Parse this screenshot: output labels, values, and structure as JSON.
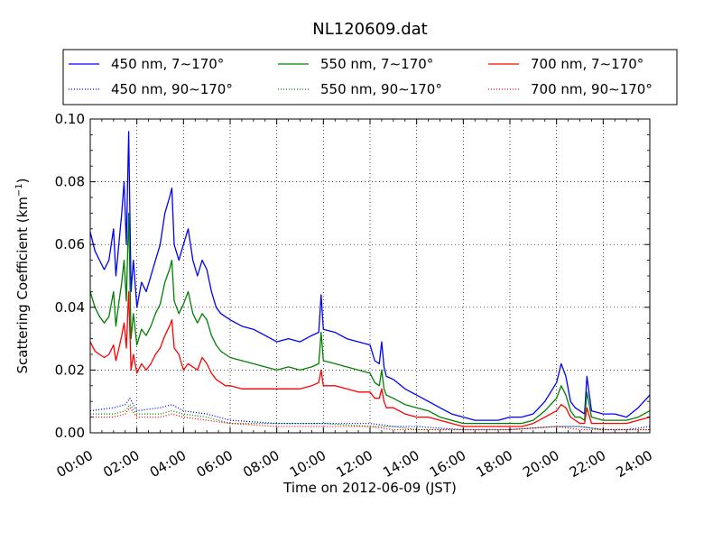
{
  "chart_data": {
    "type": "line",
    "title": "NL120609.dat",
    "xlabel": "Time on 2012-06-09 (JST)",
    "ylabel": "Scattering Coefficient (km",
    "ylabel_sup": "−1",
    "ylabel_close": ")",
    "xlim": [
      0,
      24
    ],
    "ylim": [
      0,
      0.1
    ],
    "grid": true,
    "legend_position": "top",
    "x_ticks": [
      0,
      2,
      4,
      6,
      8,
      10,
      12,
      14,
      16,
      18,
      20,
      22,
      24
    ],
    "x_tick_labels": [
      "00:00",
      "02:00",
      "04:00",
      "06:00",
      "08:00",
      "10:00",
      "12:00",
      "14:00",
      "16:00",
      "18:00",
      "20:00",
      "22:00",
      "24:00"
    ],
    "y_ticks": [
      0,
      0.02,
      0.04,
      0.06,
      0.08,
      0.1
    ],
    "y_tick_labels": [
      "0.00",
      "0.02",
      "0.04",
      "0.06",
      "0.08",
      "0.10"
    ],
    "series": [
      {
        "name": "450 nm, 7∼170°",
        "color": "#0000ff",
        "style": "solid",
        "x": [
          0,
          0.2,
          0.4,
          0.6,
          0.8,
          1.0,
          1.1,
          1.2,
          1.35,
          1.45,
          1.55,
          1.65,
          1.75,
          1.85,
          2.0,
          2.2,
          2.4,
          2.6,
          2.8,
          3.0,
          3.2,
          3.4,
          3.5,
          3.6,
          3.8,
          4.0,
          4.2,
          4.4,
          4.6,
          4.8,
          5.0,
          5.2,
          5.4,
          5.6,
          5.8,
          6.0,
          6.5,
          7.0,
          7.5,
          8.0,
          8.5,
          9.0,
          9.5,
          9.8,
          9.9,
          10.0,
          10.5,
          11.0,
          11.5,
          12.0,
          12.2,
          12.4,
          12.5,
          12.6,
          12.7,
          13.0,
          13.5,
          14.0,
          14.5,
          15.0,
          15.5,
          16.0,
          16.5,
          17.0,
          17.5,
          18.0,
          18.5,
          19.0,
          19.5,
          20.0,
          20.2,
          20.4,
          20.6,
          20.8,
          21.0,
          21.2,
          21.3,
          21.5,
          22.0,
          22.5,
          23.0,
          23.5,
          24.0
        ],
        "y": [
          0.064,
          0.058,
          0.055,
          0.052,
          0.055,
          0.065,
          0.05,
          0.058,
          0.07,
          0.08,
          0.06,
          0.096,
          0.045,
          0.055,
          0.04,
          0.048,
          0.045,
          0.05,
          0.055,
          0.06,
          0.07,
          0.075,
          0.078,
          0.06,
          0.055,
          0.06,
          0.065,
          0.055,
          0.05,
          0.055,
          0.052,
          0.045,
          0.04,
          0.038,
          0.037,
          0.036,
          0.034,
          0.033,
          0.031,
          0.029,
          0.03,
          0.029,
          0.031,
          0.032,
          0.044,
          0.033,
          0.032,
          0.03,
          0.029,
          0.028,
          0.023,
          0.022,
          0.029,
          0.021,
          0.018,
          0.017,
          0.014,
          0.012,
          0.01,
          0.008,
          0.006,
          0.005,
          0.004,
          0.004,
          0.004,
          0.005,
          0.005,
          0.006,
          0.01,
          0.016,
          0.022,
          0.018,
          0.01,
          0.008,
          0.007,
          0.006,
          0.018,
          0.007,
          0.006,
          0.006,
          0.005,
          0.008,
          0.012
        ]
      },
      {
        "name": "550 nm, 7∼170°",
        "color": "#008000",
        "style": "solid",
        "x": [
          0,
          0.2,
          0.4,
          0.6,
          0.8,
          1.0,
          1.1,
          1.2,
          1.35,
          1.45,
          1.55,
          1.65,
          1.75,
          1.85,
          2.0,
          2.2,
          2.4,
          2.6,
          2.8,
          3.0,
          3.2,
          3.4,
          3.5,
          3.6,
          3.8,
          4.0,
          4.2,
          4.4,
          4.6,
          4.8,
          5.0,
          5.2,
          5.4,
          5.6,
          5.8,
          6.0,
          6.5,
          7.0,
          7.5,
          8.0,
          8.5,
          9.0,
          9.5,
          9.8,
          9.9,
          10.0,
          10.5,
          11.0,
          11.5,
          12.0,
          12.2,
          12.4,
          12.5,
          12.6,
          12.7,
          13.0,
          13.5,
          14.0,
          14.5,
          15.0,
          15.5,
          16.0,
          16.5,
          17.0,
          17.5,
          18.0,
          18.5,
          19.0,
          19.5,
          20.0,
          20.2,
          20.4,
          20.6,
          20.8,
          21.0,
          21.2,
          21.3,
          21.5,
          22.0,
          22.5,
          23.0,
          23.5,
          24.0
        ],
        "y": [
          0.045,
          0.04,
          0.037,
          0.035,
          0.037,
          0.045,
          0.034,
          0.04,
          0.048,
          0.055,
          0.042,
          0.07,
          0.03,
          0.038,
          0.028,
          0.033,
          0.031,
          0.034,
          0.038,
          0.041,
          0.048,
          0.052,
          0.055,
          0.042,
          0.038,
          0.041,
          0.045,
          0.038,
          0.035,
          0.038,
          0.036,
          0.031,
          0.028,
          0.026,
          0.025,
          0.024,
          0.023,
          0.022,
          0.021,
          0.02,
          0.021,
          0.02,
          0.021,
          0.022,
          0.032,
          0.023,
          0.022,
          0.021,
          0.02,
          0.019,
          0.016,
          0.015,
          0.02,
          0.014,
          0.012,
          0.011,
          0.009,
          0.008,
          0.007,
          0.005,
          0.004,
          0.003,
          0.003,
          0.003,
          0.003,
          0.003,
          0.003,
          0.004,
          0.007,
          0.011,
          0.015,
          0.012,
          0.007,
          0.005,
          0.005,
          0.004,
          0.013,
          0.005,
          0.004,
          0.004,
          0.004,
          0.005,
          0.007
        ]
      },
      {
        "name": "700 nm, 7∼170°",
        "color": "#ff0000",
        "style": "solid",
        "x": [
          0,
          0.2,
          0.4,
          0.6,
          0.8,
          1.0,
          1.1,
          1.2,
          1.35,
          1.45,
          1.55,
          1.65,
          1.75,
          1.85,
          2.0,
          2.2,
          2.4,
          2.6,
          2.8,
          3.0,
          3.2,
          3.4,
          3.5,
          3.6,
          3.8,
          4.0,
          4.2,
          4.4,
          4.6,
          4.8,
          5.0,
          5.2,
          5.4,
          5.6,
          5.8,
          6.0,
          6.5,
          7.0,
          7.5,
          8.0,
          8.5,
          9.0,
          9.5,
          9.8,
          9.9,
          10.0,
          10.5,
          11.0,
          11.5,
          12.0,
          12.2,
          12.4,
          12.5,
          12.6,
          12.7,
          13.0,
          13.5,
          14.0,
          14.5,
          15.0,
          15.5,
          16.0,
          16.5,
          17.0,
          17.5,
          18.0,
          18.5,
          19.0,
          19.5,
          20.0,
          20.2,
          20.4,
          20.6,
          20.8,
          21.0,
          21.2,
          21.3,
          21.5,
          22.0,
          22.5,
          23.0,
          23.5,
          24.0
        ],
        "y": [
          0.029,
          0.026,
          0.025,
          0.024,
          0.025,
          0.028,
          0.023,
          0.026,
          0.031,
          0.035,
          0.027,
          0.045,
          0.02,
          0.025,
          0.019,
          0.022,
          0.02,
          0.022,
          0.025,
          0.027,
          0.031,
          0.034,
          0.036,
          0.027,
          0.025,
          0.02,
          0.022,
          0.021,
          0.02,
          0.024,
          0.022,
          0.019,
          0.017,
          0.016,
          0.015,
          0.015,
          0.014,
          0.014,
          0.014,
          0.014,
          0.014,
          0.014,
          0.015,
          0.016,
          0.02,
          0.015,
          0.015,
          0.014,
          0.013,
          0.013,
          0.011,
          0.011,
          0.014,
          0.01,
          0.008,
          0.008,
          0.006,
          0.005,
          0.005,
          0.004,
          0.003,
          0.002,
          0.002,
          0.002,
          0.002,
          0.002,
          0.002,
          0.003,
          0.005,
          0.007,
          0.009,
          0.008,
          0.005,
          0.004,
          0.003,
          0.003,
          0.008,
          0.003,
          0.003,
          0.003,
          0.003,
          0.004,
          0.005
        ]
      },
      {
        "name": "450 nm, 90∼170°",
        "color": "#0000ff",
        "style": "dotted",
        "x": [
          0,
          1,
          1.5,
          1.7,
          2,
          3,
          3.5,
          4,
          5,
          6,
          8,
          10,
          12,
          13,
          14,
          16,
          18,
          20,
          21,
          22,
          23,
          24
        ],
        "y": [
          0.007,
          0.008,
          0.009,
          0.011,
          0.007,
          0.008,
          0.009,
          0.007,
          0.006,
          0.004,
          0.003,
          0.003,
          0.003,
          0.002,
          0.002,
          0.001,
          0.001,
          0.002,
          0.002,
          0.001,
          0.001,
          0.002
        ]
      },
      {
        "name": "550 nm, 90∼170°",
        "color": "#008000",
        "style": "dotted",
        "x": [
          0,
          1,
          1.5,
          1.7,
          2,
          3,
          3.5,
          4,
          5,
          6,
          8,
          10,
          12,
          13,
          14,
          16,
          18,
          20,
          21,
          22,
          23,
          24
        ],
        "y": [
          0.006,
          0.006,
          0.007,
          0.009,
          0.006,
          0.006,
          0.007,
          0.006,
          0.005,
          0.003,
          0.003,
          0.003,
          0.002,
          0.002,
          0.001,
          0.001,
          0.001,
          0.002,
          0.002,
          0.001,
          0.001,
          0.001
        ]
      },
      {
        "name": "700 nm, 90∼170°",
        "color": "#ff0000",
        "style": "dotted",
        "x": [
          0,
          1,
          1.5,
          1.7,
          2,
          3,
          3.5,
          4,
          5,
          6,
          8,
          10,
          12,
          13,
          14,
          16,
          18,
          20,
          21,
          22,
          23,
          24
        ],
        "y": [
          0.005,
          0.005,
          0.006,
          0.008,
          0.005,
          0.005,
          0.006,
          0.005,
          0.004,
          0.003,
          0.002,
          0.002,
          0.002,
          0.001,
          0.001,
          0.001,
          0.001,
          0.002,
          0.001,
          0.001,
          0.001,
          0.001
        ]
      }
    ]
  }
}
